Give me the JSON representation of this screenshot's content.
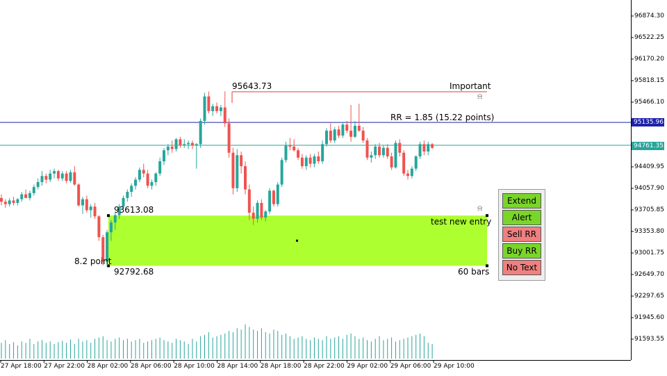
{
  "colors": {
    "bull": "#26a69a",
    "bear": "#ef5350",
    "zone": "#adff2f",
    "blue_line": "#1e22aa",
    "teal_line": "#26a69a",
    "red_line": "#e53935",
    "btn_green": "#7ad52a",
    "btn_red": "#f08080"
  },
  "icons": {
    "alert": "alarm-bell-icon"
  },
  "price_axis": {
    "ticks": [
      "96874.30",
      "96522.25",
      "96170.20",
      "95818.15",
      "95466.10",
      "94409.95",
      "94057.90",
      "93705.85",
      "93353.80",
      "93001.75",
      "92649.70",
      "92297.65",
      "91945.60",
      "91593.55"
    ],
    "blue_tag": "95135.96",
    "teal_tag": "94761.35"
  },
  "time_axis": {
    "ticks": [
      "27 Apr 18:00",
      "27 Apr 22:00",
      "28 Apr 02:00",
      "28 Apr 06:00",
      "28 Apr 10:00",
      "28 Apr 14:00",
      "28 Apr 18:00",
      "28 Apr 22:00",
      "29 Apr 02:00",
      "29 Apr 06:00",
      "29 Apr 10:00"
    ]
  },
  "annotations": {
    "high_price": "95643.73",
    "important": "Important",
    "rr_text": "RR = 1.85 (15.22 points)",
    "zone_top": "93613.08",
    "zone_bottom": "92792.68",
    "zone_name": "test new entry",
    "zone_height": "8.2 point",
    "zone_bars": "60 bars"
  },
  "panel": {
    "extend": "Extend",
    "alert": "Alert",
    "sell_rr": "Sell RR",
    "buy_rr": "Buy RR",
    "no_text": "No Text"
  },
  "chart_data": {
    "type": "candlestick",
    "ylim": [
      91400,
      97050
    ],
    "bar_count": 107,
    "candles": [
      [
        93900,
        93960,
        93780,
        93840
      ],
      [
        93840,
        93880,
        93740,
        93800
      ],
      [
        93800,
        93900,
        93760,
        93860
      ],
      [
        93860,
        93920,
        93780,
        93820
      ],
      [
        93820,
        93900,
        93780,
        93880
      ],
      [
        93880,
        94000,
        93840,
        93960
      ],
      [
        93960,
        94040,
        93900,
        93900
      ],
      [
        93900,
        94020,
        93860,
        93980
      ],
      [
        93980,
        94120,
        93940,
        94080
      ],
      [
        94080,
        94220,
        94040,
        94160
      ],
      [
        94160,
        94340,
        94100,
        94260
      ],
      [
        94260,
        94300,
        94140,
        94200
      ],
      [
        94200,
        94360,
        94160,
        94300
      ],
      [
        94300,
        94380,
        94220,
        94340
      ],
      [
        94340,
        94360,
        94180,
        94220
      ],
      [
        94220,
        94340,
        94180,
        94300
      ],
      [
        94300,
        94340,
        94140,
        94180
      ],
      [
        94180,
        94360,
        94150,
        94320
      ],
      [
        94320,
        94420,
        94100,
        94120
      ],
      [
        94120,
        94140,
        93760,
        93780
      ],
      [
        93780,
        93920,
        93640,
        93880
      ],
      [
        93880,
        93940,
        93660,
        93700
      ],
      [
        93700,
        93800,
        93580,
        93760
      ],
      [
        93760,
        93820,
        93560,
        93600
      ],
      [
        93600,
        93620,
        93200,
        93260
      ],
      [
        93260,
        93300,
        92800,
        92860
      ],
      [
        92860,
        93380,
        92780,
        93340
      ],
      [
        93340,
        93540,
        93200,
        93500
      ],
      [
        93500,
        93660,
        93380,
        93620
      ],
      [
        93620,
        93800,
        93560,
        93760
      ],
      [
        93760,
        93940,
        93720,
        93900
      ],
      [
        93900,
        94040,
        93840,
        94000
      ],
      [
        94000,
        94140,
        93920,
        94100
      ],
      [
        94100,
        94240,
        94040,
        94200
      ],
      [
        94200,
        94400,
        94160,
        94360
      ],
      [
        94360,
        94460,
        94240,
        94300
      ],
      [
        94300,
        94360,
        94060,
        94100
      ],
      [
        94100,
        94200,
        94040,
        94160
      ],
      [
        94160,
        94320,
        94100,
        94300
      ],
      [
        94300,
        94560,
        94260,
        94500
      ],
      [
        94500,
        94720,
        94440,
        94680
      ],
      [
        94680,
        94780,
        94600,
        94740
      ],
      [
        94740,
        94840,
        94640,
        94700
      ],
      [
        94700,
        94880,
        94660,
        94860
      ],
      [
        94860,
        94900,
        94720,
        94760
      ],
      [
        94760,
        94860,
        94720,
        94780
      ],
      [
        94780,
        94840,
        94700,
        94800
      ],
      [
        94800,
        94840,
        94700,
        94760
      ],
      [
        94760,
        94800,
        94380,
        94780
      ],
      [
        94780,
        95200,
        94720,
        95160
      ],
      [
        95160,
        95620,
        95100,
        95560
      ],
      [
        95560,
        95640,
        95280,
        95320
      ],
      [
        95320,
        95440,
        95240,
        95400
      ],
      [
        95400,
        95460,
        95280,
        95320
      ],
      [
        95320,
        95420,
        95240,
        95380
      ],
      [
        95380,
        95644,
        95060,
        95120
      ],
      [
        95120,
        95200,
        94560,
        94640
      ],
      [
        94640,
        94720,
        93960,
        94060
      ],
      [
        94060,
        94700,
        94000,
        94600
      ],
      [
        94600,
        94660,
        94300,
        94420
      ],
      [
        94420,
        94500,
        93960,
        94040
      ],
      [
        94040,
        94120,
        93540,
        93660
      ],
      [
        93660,
        93760,
        93460,
        93560
      ],
      [
        93560,
        93860,
        93500,
        93820
      ],
      [
        93820,
        93880,
        93540,
        93580
      ],
      [
        93580,
        93700,
        93520,
        93680
      ],
      [
        93680,
        94060,
        93640,
        94020
      ],
      [
        94020,
        94040,
        93760,
        93800
      ],
      [
        93800,
        94160,
        93760,
        94120
      ],
      [
        94120,
        94560,
        94080,
        94520
      ],
      [
        94520,
        94820,
        94480,
        94760
      ],
      [
        94760,
        94880,
        94680,
        94740
      ],
      [
        94740,
        94860,
        94660,
        94680
      ],
      [
        94680,
        94720,
        94520,
        94560
      ],
      [
        94560,
        94620,
        94380,
        94420
      ],
      [
        94420,
        94600,
        94360,
        94560
      ],
      [
        94560,
        94620,
        94400,
        94460
      ],
      [
        94460,
        94620,
        94400,
        94580
      ],
      [
        94580,
        94660,
        94460,
        94500
      ],
      [
        94500,
        94840,
        94460,
        94780
      ],
      [
        94780,
        95040,
        94740,
        95000
      ],
      [
        95000,
        95120,
        94800,
        94840
      ],
      [
        94840,
        95060,
        94800,
        95020
      ],
      [
        95020,
        95080,
        94880,
        94920
      ],
      [
        94920,
        95140,
        94880,
        95100
      ],
      [
        95100,
        95160,
        94960,
        95000
      ],
      [
        95000,
        95420,
        94820,
        94900
      ],
      [
        94900,
        95160,
        94880,
        95080
      ],
      [
        95080,
        95440,
        94980,
        95000
      ],
      [
        95000,
        95060,
        94800,
        94840
      ],
      [
        94840,
        94880,
        94520,
        94560
      ],
      [
        94560,
        94660,
        94480,
        94600
      ],
      [
        94600,
        94780,
        94540,
        94740
      ],
      [
        94740,
        94800,
        94560,
        94600
      ],
      [
        94600,
        94760,
        94560,
        94720
      ],
      [
        94720,
        94780,
        94540,
        94580
      ],
      [
        94580,
        94640,
        94360,
        94400
      ],
      [
        94400,
        94840,
        94380,
        94800
      ],
      [
        94800,
        94860,
        94580,
        94640
      ],
      [
        94640,
        94680,
        94260,
        94300
      ],
      [
        94300,
        94360,
        94200,
        94260
      ],
      [
        94260,
        94420,
        94220,
        94380
      ],
      [
        94380,
        94600,
        94340,
        94580
      ],
      [
        94580,
        94820,
        94540,
        94780
      ],
      [
        94780,
        94840,
        94600,
        94660
      ],
      [
        94660,
        94820,
        94600,
        94780
      ],
      [
        94780,
        94800,
        94700,
        94720
      ]
    ],
    "volume": [
      24,
      28,
      22,
      25,
      20,
      26,
      24,
      30,
      22,
      26,
      28,
      24,
      26,
      22,
      25,
      27,
      24,
      29,
      22,
      30,
      26,
      28,
      24,
      30,
      32,
      34,
      28,
      26,
      30,
      32,
      28,
      30,
      26,
      28,
      30,
      24,
      26,
      28,
      30,
      32,
      28,
      26,
      24,
      30,
      28,
      26,
      22,
      30,
      26,
      34,
      36,
      40,
      32,
      34,
      36,
      38,
      42,
      40,
      46,
      44,
      52,
      48,
      44,
      42,
      46,
      40,
      38,
      44,
      42,
      36,
      38,
      34,
      30,
      32,
      34,
      30,
      28,
      32,
      30,
      28,
      34,
      30,
      32,
      34,
      30,
      36,
      38,
      34,
      30,
      32,
      28,
      26,
      30,
      34,
      28,
      30,
      32,
      26,
      28,
      30,
      32,
      34,
      36,
      38,
      34,
      24,
      22
    ]
  }
}
